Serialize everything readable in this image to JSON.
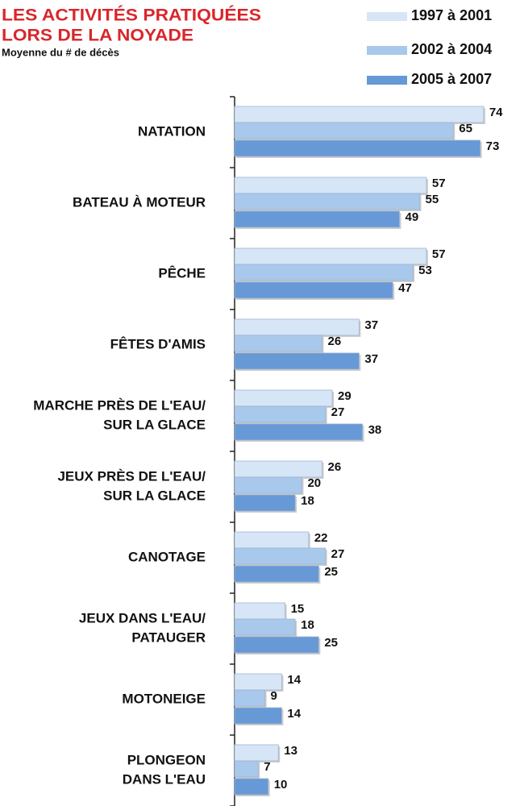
{
  "chart_data": {
    "type": "hbar",
    "title": [
      "LES ACTIVITÉS PRATIQUÉES",
      "LORS DE LA NOYADE"
    ],
    "subtitle": "Moyenne du # de décès",
    "categories": [
      [
        "NATATION"
      ],
      [
        "BATEAU À MOTEUR"
      ],
      [
        "PÊCHE"
      ],
      [
        "FÊTES D'AMIS"
      ],
      [
        "MARCHE PRÈS DE L'EAU/",
        "SUR LA GLACE"
      ],
      [
        "JEUX PRÈS DE L'EAU/",
        "SUR LA GLACE"
      ],
      [
        "CANOTAGE"
      ],
      [
        "JEUX DANS L'EAU/",
        "PATAUGER"
      ],
      [
        "MOTONEIGE"
      ],
      [
        "PLONGEON",
        "DANS L'EAU"
      ]
    ],
    "series": [
      {
        "name": "1997 à 2001",
        "color": "#d6e6f7",
        "values": [
          74,
          57,
          57,
          37,
          29,
          26,
          22,
          15,
          14,
          13
        ]
      },
      {
        "name": "2002 à 2004",
        "color": "#a8c8ec",
        "values": [
          65,
          55,
          53,
          26,
          27,
          20,
          27,
          18,
          9,
          7
        ]
      },
      {
        "name": "2005 à 2007",
        "color": "#6699d6",
        "values": [
          73,
          49,
          47,
          37,
          38,
          18,
          25,
          25,
          14,
          10
        ]
      }
    ],
    "xlim": [
      0,
      75
    ],
    "legend": "top-right"
  }
}
